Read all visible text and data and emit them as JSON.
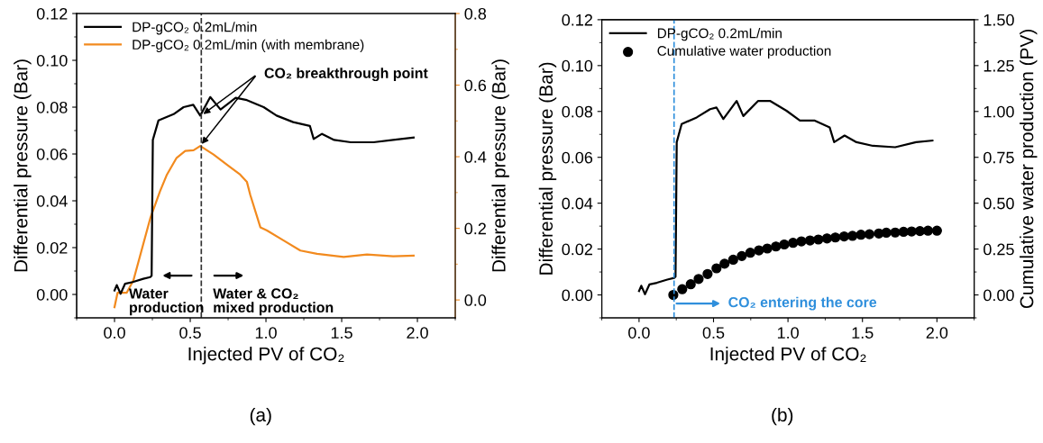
{
  "chart_data": [
    {
      "type": "line",
      "xlabel": "Injected PV of CO₂",
      "ylabel": "Differential pressure (Bar)",
      "y2label": "Differential pressure (Bar)",
      "xlim": [
        -0.25,
        2.25
      ],
      "xticks": [
        {
          "value": 0,
          "label": "0.0"
        },
        {
          "value": 0.5,
          "label": "0.5"
        },
        {
          "value": 1,
          "label": "1.0"
        },
        {
          "value": 1.5,
          "label": "1.5"
        },
        {
          "value": 2,
          "label": "2.0"
        }
      ],
      "ylim": [
        -0.01,
        0.12
      ],
      "yticks": [
        {
          "value": 0,
          "label": "0.00"
        },
        {
          "value": 0.02,
          "label": "0.02"
        },
        {
          "value": 0.04,
          "label": "0.04"
        },
        {
          "value": 0.06,
          "label": "0.06"
        },
        {
          "value": 0.08,
          "label": "0.08"
        },
        {
          "value": 0.1,
          "label": "0.10"
        },
        {
          "value": 0.12,
          "label": "0.12"
        }
      ],
      "y2lim": [
        -0.05,
        0.8
      ],
      "y2ticks": [
        {
          "value": 0,
          "label": "0.0"
        },
        {
          "value": 0.2,
          "label": "0.2"
        },
        {
          "value": 0.4,
          "label": "0.4"
        },
        {
          "value": 0.6,
          "label": "0.6"
        },
        {
          "value": 0.8,
          "label": "0.8"
        }
      ],
      "legend": "top left",
      "grid": false,
      "series": [
        {
          "name": "DP-gCO₂ 0.2mL/min",
          "color": "#000000",
          "x": [
            0,
            0.015,
            0.04,
            0.07,
            0.12,
            0.19,
            0.236,
            0.245,
            0.253,
            0.29,
            0.39,
            0.456,
            0.52,
            0.566,
            0.632,
            0.7,
            0.8,
            0.874,
            0.985,
            1.07,
            1.18,
            1.29,
            1.315,
            1.37,
            1.45,
            1.56,
            1.71,
            1.84,
            1.975
          ],
          "values": [
            0.0017,
            0.004,
            0.0003,
            0.0046,
            0.0053,
            0.0067,
            0.0074,
            0.008,
            0.066,
            0.0743,
            0.077,
            0.08,
            0.081,
            0.0764,
            0.0843,
            0.079,
            0.084,
            0.083,
            0.08,
            0.0764,
            0.0736,
            0.072,
            0.0664,
            0.0686,
            0.066,
            0.065,
            0.065,
            0.066,
            0.067
          ]
        },
        {
          "name": "DP-gCO₂ 0.2mL/min (with membrane)",
          "color": "#f28a1e",
          "axis": "y2",
          "x": [
            0,
            0.02,
            0.08,
            0.125,
            0.236,
            0.3,
            0.346,
            0.41,
            0.467,
            0.522,
            0.566,
            0.654,
            0.742,
            0.83,
            0.874,
            0.896,
            0.963,
            1.007,
            1.117,
            1.227,
            1.337,
            1.513,
            1.667,
            1.84,
            1.975
          ],
          "values": [
            -0.02,
            0.02,
            0.02,
            0.055,
            0.228,
            0.303,
            0.35,
            0.397,
            0.416,
            0.418,
            0.43,
            0.406,
            0.378,
            0.35,
            0.33,
            0.294,
            0.203,
            0.194,
            0.166,
            0.138,
            0.129,
            0.12,
            0.127,
            0.122,
            0.124
          ]
        }
      ],
      "ref_lines": [
        {
          "axis": "x",
          "value": 0.573,
          "color": "#333333",
          "line_style": "dashed"
        }
      ],
      "annotations": [
        {
          "text": "CO₂ breakthrough point",
          "x": 0.573,
          "y": 0.0764
        },
        "Water\nproduction",
        "Water & CO₂\nmixed production",
        "(a)"
      ]
    },
    {
      "type": "line",
      "xlabel": "Injected PV of CO₂",
      "ylabel": "Differential pressure (Bar)",
      "y2label": "Cumulative water production (PV)",
      "xlim": [
        -0.25,
        2.25
      ],
      "xticks": [
        {
          "value": 0,
          "label": "0.0"
        },
        {
          "value": 0.5,
          "label": "0.5"
        },
        {
          "value": 1,
          "label": "1.0"
        },
        {
          "value": 1.5,
          "label": "1.5"
        },
        {
          "value": 2,
          "label": "2.0"
        }
      ],
      "ylim": [
        -0.01,
        0.12
      ],
      "yticks": [
        {
          "value": 0,
          "label": "0.00"
        },
        {
          "value": 0.02,
          "label": "0.02"
        },
        {
          "value": 0.04,
          "label": "0.04"
        },
        {
          "value": 0.06,
          "label": "0.06"
        },
        {
          "value": 0.08,
          "label": "0.08"
        },
        {
          "value": 0.1,
          "label": "0.10"
        },
        {
          "value": 0.12,
          "label": "0.12"
        }
      ],
      "y2lim": [
        -0.125,
        1.5
      ],
      "y2ticks": [
        {
          "value": 0,
          "label": "0.00"
        },
        {
          "value": 0.25,
          "label": "0.25"
        },
        {
          "value": 0.5,
          "label": "0.50"
        },
        {
          "value": 0.75,
          "label": "0.75"
        },
        {
          "value": 1,
          "label": "1.00"
        },
        {
          "value": 1.25,
          "label": "1.25"
        },
        {
          "value": 1.5,
          "label": "1.50"
        }
      ],
      "legend": "top left",
      "grid": false,
      "series": [
        {
          "name": "DP-gCO₂ 0.2mL/min",
          "color": "#000000",
          "x": [
            0,
            0.015,
            0.04,
            0.07,
            0.12,
            0.19,
            0.236,
            0.245,
            0.253,
            0.286,
            0.387,
            0.477,
            0.52,
            0.566,
            0.655,
            0.7,
            0.8,
            0.879,
            0.99,
            1.08,
            1.18,
            1.28,
            1.31,
            1.38,
            1.46,
            1.57,
            1.72,
            1.86,
            1.97
          ],
          "values": [
            0.0017,
            0.004,
            0.0003,
            0.0046,
            0.0053,
            0.0067,
            0.0074,
            0.008,
            0.0666,
            0.0745,
            0.0774,
            0.081,
            0.0817,
            0.0767,
            0.0846,
            0.078,
            0.0846,
            0.0846,
            0.0803,
            0.076,
            0.076,
            0.073,
            0.0666,
            0.0695,
            0.0666,
            0.065,
            0.0644,
            0.0666,
            0.0673
          ]
        },
        {
          "name": "Cumulative water production",
          "type": "scatter",
          "marker": "circle",
          "color": "#000000",
          "axis": "y2",
          "x": [
            0.23,
            0.29,
            0.347,
            0.4,
            0.46,
            0.52,
            0.574,
            0.632,
            0.69,
            0.747,
            0.805,
            0.861,
            0.919,
            0.975,
            1.034,
            1.09,
            1.148,
            1.204,
            1.262,
            1.318,
            1.377,
            1.433,
            1.49,
            1.547,
            1.61,
            1.66,
            1.72,
            1.776,
            1.83,
            1.886,
            1.94,
            2.0
          ],
          "values": [
            0.0,
            0.031,
            0.058,
            0.087,
            0.114,
            0.145,
            0.17,
            0.192,
            0.212,
            0.23,
            0.243,
            0.253,
            0.264,
            0.275,
            0.284,
            0.292,
            0.297,
            0.302,
            0.308,
            0.313,
            0.319,
            0.322,
            0.328,
            0.331,
            0.335,
            0.339,
            0.34,
            0.344,
            0.346,
            0.348,
            0.35,
            0.35
          ]
        }
      ],
      "ref_lines": [
        {
          "axis": "x",
          "value": 0.235,
          "color": "#2f8fdc",
          "line_style": "dashed"
        }
      ],
      "annotations": [
        "CO₂ entering the core",
        "(b)"
      ]
    }
  ]
}
